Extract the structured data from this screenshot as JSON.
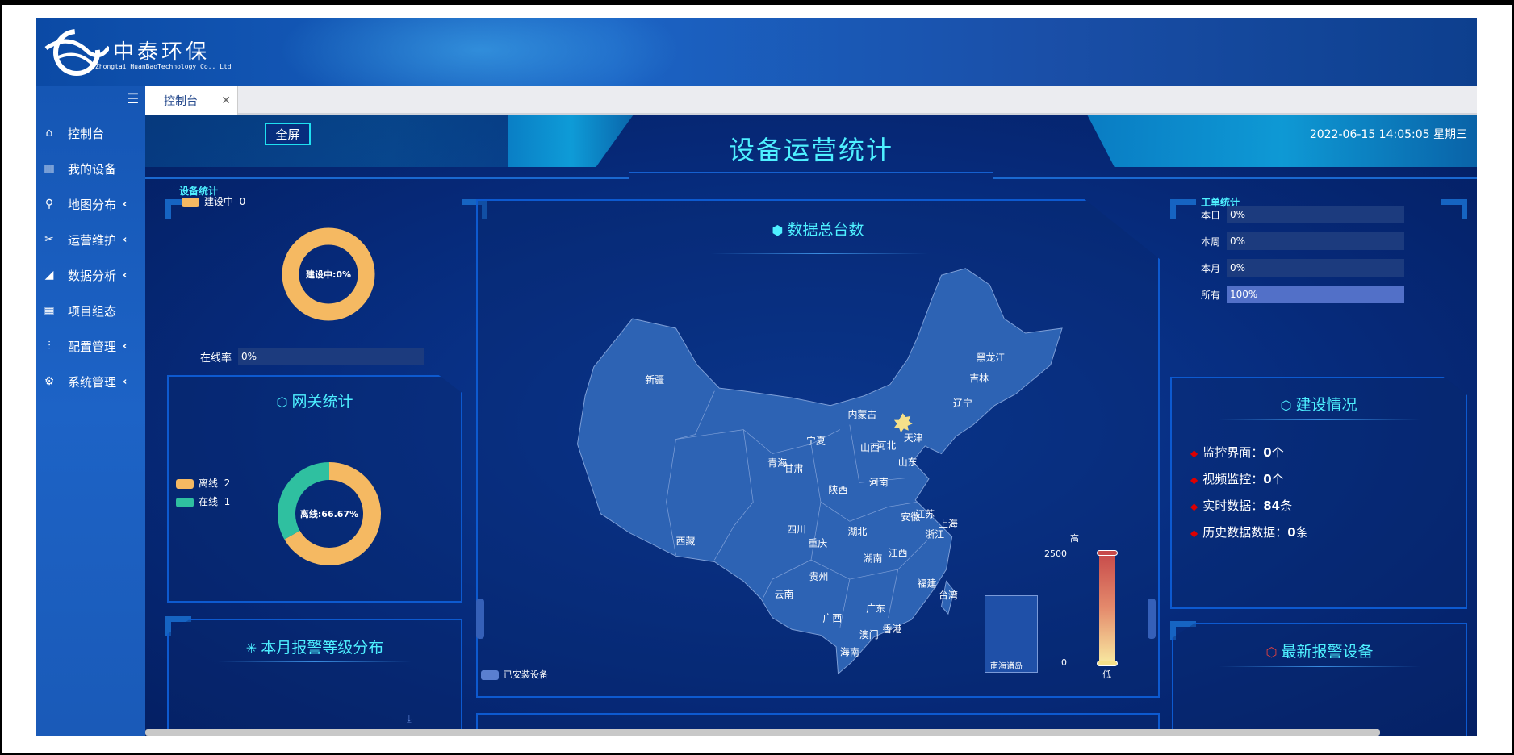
{
  "brand": {
    "name": "中泰环保",
    "subtitle": "Zhongtai HuanBaoTechnology Co., Ltd"
  },
  "sidebar": {
    "toggle_icon": "hamburger-icon",
    "items": [
      {
        "label": "控制台",
        "icon": "home-icon",
        "expandable": false
      },
      {
        "label": "我的设备",
        "icon": "devices-icon",
        "expandable": false
      },
      {
        "label": "地图分布",
        "icon": "map-pin-icon",
        "expandable": true
      },
      {
        "label": "运营维护",
        "icon": "tools-icon",
        "expandable": true
      },
      {
        "label": "数据分析",
        "icon": "area-chart-icon",
        "expandable": true
      },
      {
        "label": "项目组态",
        "icon": "grid-icon",
        "expandable": false
      },
      {
        "label": "配置管理",
        "icon": "sliders-icon",
        "expandable": true
      },
      {
        "label": "系统管理",
        "icon": "gear-icon",
        "expandable": true
      }
    ]
  },
  "tabs": [
    {
      "label": "控制台",
      "active": true
    }
  ],
  "dashboard": {
    "fullscreen_label": "全屏",
    "title": "设备运营统计",
    "datetime": "2022-06-15 14:05:05 星期三",
    "device_stats": {
      "title": "设备统计",
      "legend": [
        {
          "label": "建设中",
          "value": "0",
          "color": "#f5b962"
        }
      ],
      "donut_label": "建设中:0%",
      "online_rate_label": "在线率",
      "online_rate": "0%",
      "online_rate_fraction": 0
    },
    "gateway": {
      "title": "网关统计",
      "legend": [
        {
          "label": "离线",
          "value": "2",
          "color": "#f5b962"
        },
        {
          "label": "在线",
          "value": "1",
          "color": "#2fc0a0"
        }
      ],
      "donut_label": "离线:66.67%"
    },
    "alarm_level": {
      "title": "本月报警等级分布"
    },
    "map": {
      "title": "数据总台数",
      "legend_label": "已安装设备",
      "legend_color": "#5a7fd0",
      "visual_max": "2500",
      "visual_min": "0",
      "high_label": "高",
      "low_label": "低",
      "south_sea_label": "南海诸岛",
      "provinces": [
        "新疆",
        "西藏",
        "青海",
        "甘肃",
        "宁夏",
        "内蒙古",
        "山西",
        "河北",
        "天津",
        "辽宁",
        "吉林",
        "黑龙江",
        "山东",
        "河南",
        "陕西",
        "四川",
        "重庆",
        "湖北",
        "安徽",
        "江苏",
        "上海",
        "浙江",
        "湖南",
        "江西",
        "贵州",
        "云南",
        "广西",
        "广东",
        "福建",
        "台湾",
        "香港",
        "澳门",
        "海南"
      ]
    },
    "work_orders": {
      "title": "工单统计",
      "rows": [
        {
          "label": "本日",
          "value": "0%",
          "fraction": 0
        },
        {
          "label": "本周",
          "value": "0%",
          "fraction": 0
        },
        {
          "label": "本月",
          "value": "0%",
          "fraction": 0
        },
        {
          "label": "所有",
          "value": "100%",
          "fraction": 1
        }
      ]
    },
    "construction": {
      "title": "建设情况",
      "items": [
        {
          "label": "监控界面：",
          "value": "0",
          "unit": "个"
        },
        {
          "label": "视频监控：",
          "value": "0",
          "unit": "个"
        },
        {
          "label": "实时数据：",
          "value": "84",
          "unit": "条"
        },
        {
          "label": "历史数据数据：",
          "value": "0",
          "unit": "条"
        }
      ]
    },
    "latest_alarm": {
      "title": "最新报警设备"
    }
  }
}
